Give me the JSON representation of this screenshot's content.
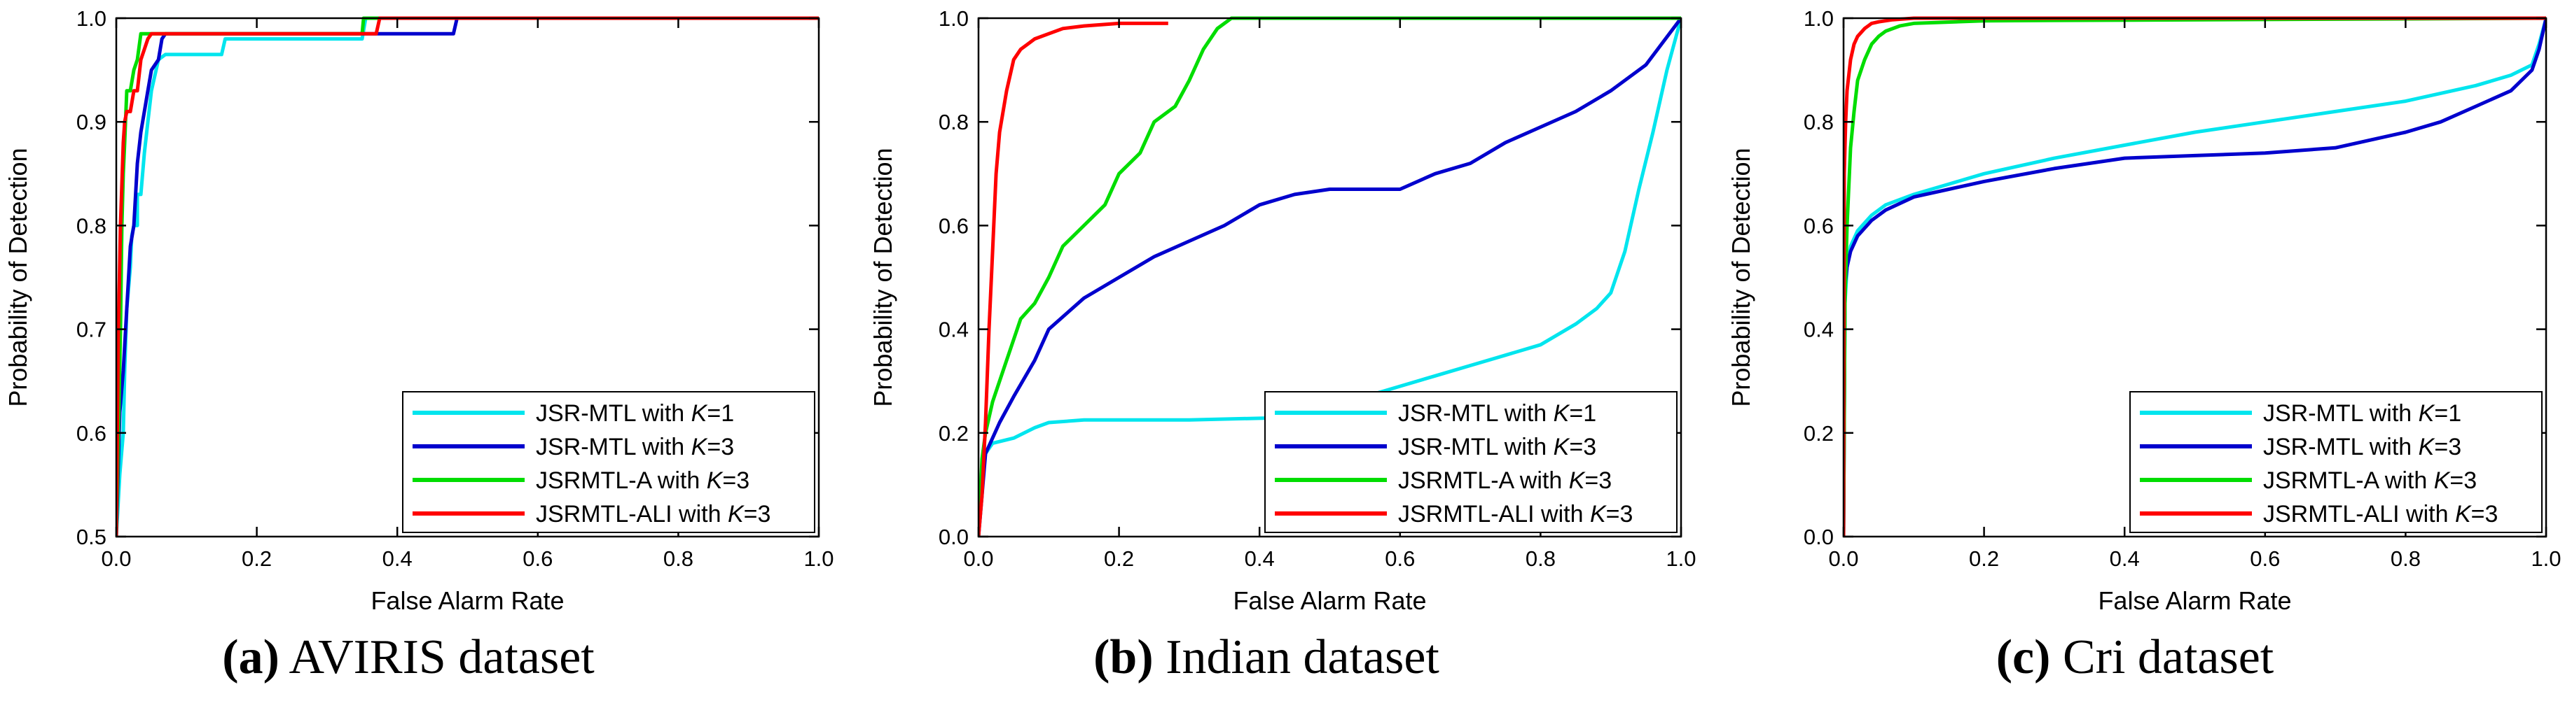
{
  "figure": {
    "panels": [
      {
        "caption_letter": "(a)",
        "caption_text": " AVIRIS dataset"
      },
      {
        "caption_letter": "(b)",
        "caption_text": " Indian dataset"
      },
      {
        "caption_letter": "(c)",
        "caption_text": " Cri dataset"
      }
    ]
  },
  "chart_data": [
    {
      "type": "line",
      "title": "",
      "xlabel": "False Alarm Rate",
      "ylabel": "Probability of Detection",
      "xlim": [
        0,
        1
      ],
      "ylim": [
        0.5,
        1.0
      ],
      "xticks": [
        "0.0",
        "0.2",
        "0.4",
        "0.6",
        "0.8",
        "1.0"
      ],
      "yticks": [
        "0.5",
        "0.6",
        "0.7",
        "0.8",
        "0.9",
        "1.0"
      ],
      "xtick_values": [
        0,
        0.2,
        0.4,
        0.6,
        0.8,
        1.0
      ],
      "ytick_values": [
        0.5,
        0.6,
        0.7,
        0.8,
        0.9,
        1.0
      ],
      "legend_location": "lower-right",
      "series": [
        {
          "name": "JSR-MTL with K=1",
          "label_prefix": "JSR-MTL with ",
          "k_label": "K",
          "k_value": "=1",
          "color": "#00e5ee",
          "x": [
            0.0,
            0.005,
            0.01,
            0.012,
            0.015,
            0.02,
            0.022,
            0.025,
            0.03,
            0.03,
            0.035,
            0.04,
            0.045,
            0.05,
            0.06,
            0.07,
            0.15,
            0.155,
            0.2,
            0.35,
            0.355,
            1.0
          ],
          "y": [
            0.5,
            0.56,
            0.6,
            0.66,
            0.72,
            0.76,
            0.79,
            0.8,
            0.8,
            0.83,
            0.83,
            0.87,
            0.9,
            0.93,
            0.96,
            0.965,
            0.965,
            0.98,
            0.98,
            0.98,
            1.0,
            1.0
          ]
        },
        {
          "name": "JSR-MTL with K=3",
          "label_prefix": "JSR-MTL with ",
          "k_label": "K",
          "k_value": "=3",
          "color": "#0000cd",
          "x": [
            0.0,
            0.005,
            0.01,
            0.015,
            0.02,
            0.025,
            0.03,
            0.035,
            0.04,
            0.045,
            0.05,
            0.06,
            0.065,
            0.07,
            0.2,
            0.4,
            0.48,
            0.485,
            1.0
          ],
          "y": [
            0.5,
            0.62,
            0.66,
            0.72,
            0.78,
            0.8,
            0.86,
            0.89,
            0.91,
            0.93,
            0.95,
            0.96,
            0.98,
            0.985,
            0.985,
            0.985,
            0.985,
            1.0,
            1.0
          ]
        },
        {
          "name": "JSRMTL-A with K=3",
          "label_prefix": "JSRMTL-A with ",
          "k_label": "K",
          "k_value": "=3",
          "color": "#00dd00",
          "x": [
            0.0,
            0.003,
            0.006,
            0.008,
            0.01,
            0.012,
            0.015,
            0.02,
            0.025,
            0.03,
            0.035,
            0.04,
            0.1,
            0.35,
            0.352,
            1.0
          ],
          "y": [
            0.5,
            0.6,
            0.7,
            0.8,
            0.85,
            0.88,
            0.93,
            0.93,
            0.95,
            0.96,
            0.985,
            0.985,
            0.985,
            0.985,
            1.0,
            1.0
          ]
        },
        {
          "name": "JSRMTL-ALI with K=3",
          "label_prefix": "JSRMTL-ALI with ",
          "k_label": "K",
          "k_value": "=3",
          "color": "#ff0000",
          "x": [
            0.0,
            0.003,
            0.006,
            0.01,
            0.012,
            0.015,
            0.02,
            0.025,
            0.03,
            0.035,
            0.04,
            0.045,
            0.05,
            0.06,
            0.1,
            0.37,
            0.375,
            1.0
          ],
          "y": [
            0.5,
            0.7,
            0.8,
            0.88,
            0.9,
            0.91,
            0.91,
            0.93,
            0.93,
            0.96,
            0.97,
            0.98,
            0.985,
            0.985,
            0.985,
            0.985,
            1.0,
            1.0
          ]
        }
      ]
    },
    {
      "type": "line",
      "title": "",
      "xlabel": "False Alarm Rate",
      "ylabel": "Probability of Detection",
      "xlim": [
        0,
        1
      ],
      "ylim": [
        0,
        1.0
      ],
      "xticks": [
        "0.0",
        "0.2",
        "0.4",
        "0.6",
        "0.8",
        "1.0"
      ],
      "yticks": [
        "0.0",
        "0.2",
        "0.4",
        "0.6",
        "0.8",
        "1.0"
      ],
      "xtick_values": [
        0,
        0.2,
        0.4,
        0.6,
        0.8,
        1.0
      ],
      "ytick_values": [
        0,
        0.2,
        0.4,
        0.6,
        0.8,
        1.0
      ],
      "legend_location": "lower-right",
      "series": [
        {
          "name": "JSR-MTL with K=1",
          "label_prefix": "JSR-MTL with ",
          "k_label": "K",
          "k_value": "=1",
          "color": "#00e5ee",
          "x": [
            0.0,
            0.005,
            0.01,
            0.02,
            0.05,
            0.08,
            0.1,
            0.15,
            0.3,
            0.45,
            0.5,
            0.6,
            0.65,
            0.7,
            0.75,
            0.8,
            0.85,
            0.88,
            0.9,
            0.92,
            0.94,
            0.96,
            0.98,
            1.0
          ],
          "y": [
            0.0,
            0.12,
            0.16,
            0.18,
            0.19,
            0.21,
            0.22,
            0.225,
            0.225,
            0.23,
            0.25,
            0.29,
            0.31,
            0.33,
            0.35,
            0.37,
            0.41,
            0.44,
            0.47,
            0.55,
            0.67,
            0.78,
            0.9,
            1.0
          ]
        },
        {
          "name": "JSR-MTL with K=3",
          "label_prefix": "JSR-MTL with ",
          "k_label": "K",
          "k_value": "=3",
          "color": "#0000cd",
          "x": [
            0.0,
            0.01,
            0.03,
            0.05,
            0.08,
            0.1,
            0.15,
            0.2,
            0.25,
            0.3,
            0.35,
            0.4,
            0.45,
            0.5,
            0.55,
            0.6,
            0.65,
            0.7,
            0.75,
            0.8,
            0.85,
            0.9,
            0.95,
            1.0
          ],
          "y": [
            0.0,
            0.16,
            0.22,
            0.27,
            0.34,
            0.4,
            0.46,
            0.5,
            0.54,
            0.57,
            0.6,
            0.64,
            0.66,
            0.67,
            0.67,
            0.67,
            0.7,
            0.72,
            0.76,
            0.79,
            0.82,
            0.86,
            0.91,
            1.0
          ]
        },
        {
          "name": "JSRMTL-A with K=3",
          "label_prefix": "JSRMTL-A with ",
          "k_label": "K",
          "k_value": "=3",
          "color": "#00dd00",
          "x": [
            0.0,
            0.005,
            0.01,
            0.02,
            0.04,
            0.06,
            0.08,
            0.1,
            0.12,
            0.15,
            0.18,
            0.2,
            0.23,
            0.25,
            0.28,
            0.3,
            0.32,
            0.34,
            0.36,
            1.0
          ],
          "y": [
            0.0,
            0.15,
            0.2,
            0.26,
            0.34,
            0.42,
            0.45,
            0.5,
            0.56,
            0.6,
            0.64,
            0.7,
            0.74,
            0.8,
            0.83,
            0.88,
            0.94,
            0.98,
            1.0,
            1.0
          ]
        },
        {
          "name": "JSRMTL-ALI with K=3",
          "label_prefix": "JSRMTL-ALI with ",
          "k_label": "K",
          "k_value": "=3",
          "color": "#ff0000",
          "x": [
            0.0,
            0.005,
            0.01,
            0.015,
            0.02,
            0.025,
            0.03,
            0.04,
            0.05,
            0.06,
            0.07,
            0.08,
            0.1,
            0.12,
            0.15,
            0.2,
            0.27
          ],
          "y": [
            0.0,
            0.08,
            0.22,
            0.4,
            0.55,
            0.7,
            0.78,
            0.86,
            0.92,
            0.94,
            0.95,
            0.96,
            0.97,
            0.98,
            0.985,
            0.99,
            0.99
          ]
        }
      ]
    },
    {
      "type": "line",
      "title": "",
      "xlabel": "False Alarm Rate",
      "ylabel": "Probability of Detection",
      "xlim": [
        0,
        1
      ],
      "ylim": [
        0,
        1.0
      ],
      "xticks": [
        "0.0",
        "0.2",
        "0.4",
        "0.6",
        "0.8",
        "1.0"
      ],
      "yticks": [
        "0.0",
        "0.2",
        "0.4",
        "0.6",
        "0.8",
        "1.0"
      ],
      "xtick_values": [
        0,
        0.2,
        0.4,
        0.6,
        0.8,
        1.0
      ],
      "ytick_values": [
        0,
        0.2,
        0.4,
        0.6,
        0.8,
        1.0
      ],
      "legend_location": "lower-right",
      "series": [
        {
          "name": "JSR-MTL with K=1",
          "label_prefix": "JSR-MTL with ",
          "k_label": "K",
          "k_value": "=1",
          "color": "#00e5ee",
          "x": [
            0.0,
            0.002,
            0.005,
            0.01,
            0.02,
            0.04,
            0.06,
            0.1,
            0.15,
            0.2,
            0.3,
            0.4,
            0.5,
            0.6,
            0.7,
            0.8,
            0.9,
            0.95,
            0.98,
            0.99,
            1.0
          ],
          "y": [
            0.0,
            0.45,
            0.52,
            0.56,
            0.59,
            0.62,
            0.64,
            0.66,
            0.68,
            0.7,
            0.73,
            0.755,
            0.78,
            0.8,
            0.82,
            0.84,
            0.87,
            0.89,
            0.91,
            0.95,
            1.0
          ]
        },
        {
          "name": "JSR-MTL with K=3",
          "label_prefix": "JSR-MTL with ",
          "k_label": "K",
          "k_value": "=3",
          "color": "#0000cd",
          "x": [
            0.0,
            0.002,
            0.005,
            0.01,
            0.02,
            0.04,
            0.06,
            0.1,
            0.15,
            0.2,
            0.3,
            0.4,
            0.5,
            0.6,
            0.7,
            0.8,
            0.85,
            0.9,
            0.95,
            0.98,
            0.99,
            1.0
          ],
          "y": [
            0.0,
            0.48,
            0.52,
            0.55,
            0.58,
            0.61,
            0.63,
            0.655,
            0.67,
            0.685,
            0.71,
            0.73,
            0.735,
            0.74,
            0.75,
            0.78,
            0.8,
            0.83,
            0.86,
            0.9,
            0.94,
            1.0
          ]
        },
        {
          "name": "JSRMTL-A with K=3",
          "label_prefix": "JSRMTL-A with ",
          "k_label": "K",
          "k_value": "=3",
          "color": "#00dd00",
          "x": [
            0.0,
            0.002,
            0.005,
            0.01,
            0.015,
            0.02,
            0.03,
            0.04,
            0.05,
            0.06,
            0.08,
            0.1,
            0.2,
            1.0
          ],
          "y": [
            0.0,
            0.45,
            0.6,
            0.75,
            0.82,
            0.88,
            0.92,
            0.95,
            0.965,
            0.975,
            0.985,
            0.99,
            0.995,
            1.0
          ]
        },
        {
          "name": "JSRMTL-ALI with K=3",
          "label_prefix": "JSRMTL-ALI with ",
          "k_label": "K",
          "k_value": "=3",
          "color": "#ff0000",
          "x": [
            0.0,
            0.001,
            0.003,
            0.005,
            0.01,
            0.015,
            0.02,
            0.03,
            0.04,
            0.05,
            0.07,
            0.1,
            1.0
          ],
          "y": [
            0.0,
            0.7,
            0.8,
            0.86,
            0.92,
            0.95,
            0.965,
            0.98,
            0.99,
            0.993,
            0.997,
            1.0,
            1.0
          ]
        }
      ]
    }
  ]
}
